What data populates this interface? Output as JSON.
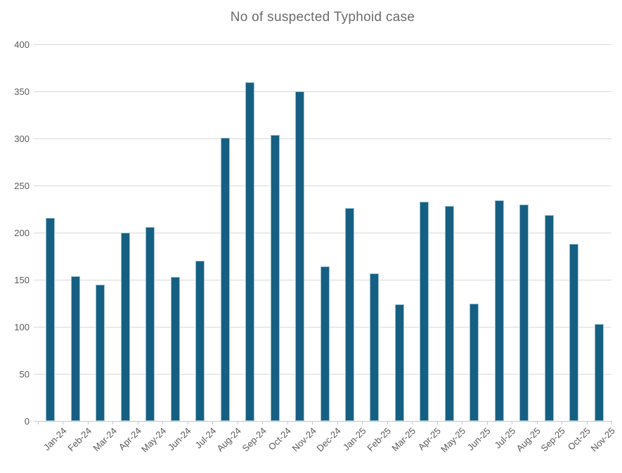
{
  "chart_data": {
    "type": "bar",
    "title": "No of suspected Typhoid case",
    "categories": [
      "Jan-24",
      "Feb-24",
      "Mar-24",
      "Apr-24",
      "May-24",
      "Jun-24",
      "Jul-24",
      "Aug-24",
      "Sep-24",
      "Oct-24",
      "Nov-24",
      "Dec-24",
      "Jan-25",
      "Feb-25",
      "Mar-25",
      "Apr-25",
      "May-25",
      "Jun-25",
      "Jul-25",
      "Aug-25",
      "Sep-25",
      "Oct-25",
      "Nov-25"
    ],
    "values": [
      216,
      154,
      145,
      200,
      206,
      153,
      170,
      301,
      360,
      304,
      350,
      164,
      226,
      157,
      124,
      233,
      228,
      125,
      234,
      230,
      219,
      188,
      103
    ],
    "xlabel": "",
    "ylabel": "",
    "ylim": [
      0,
      400
    ],
    "yticks": [
      0,
      50,
      100,
      150,
      200,
      250,
      300,
      350,
      400
    ],
    "grid": true,
    "legend": "none",
    "colors": {
      "bar": "#156082",
      "title": "#6b6b6b",
      "axis_labels": "#595959",
      "gridline": "#d9d9d9",
      "axis_line": "#c9c7c7"
    }
  }
}
